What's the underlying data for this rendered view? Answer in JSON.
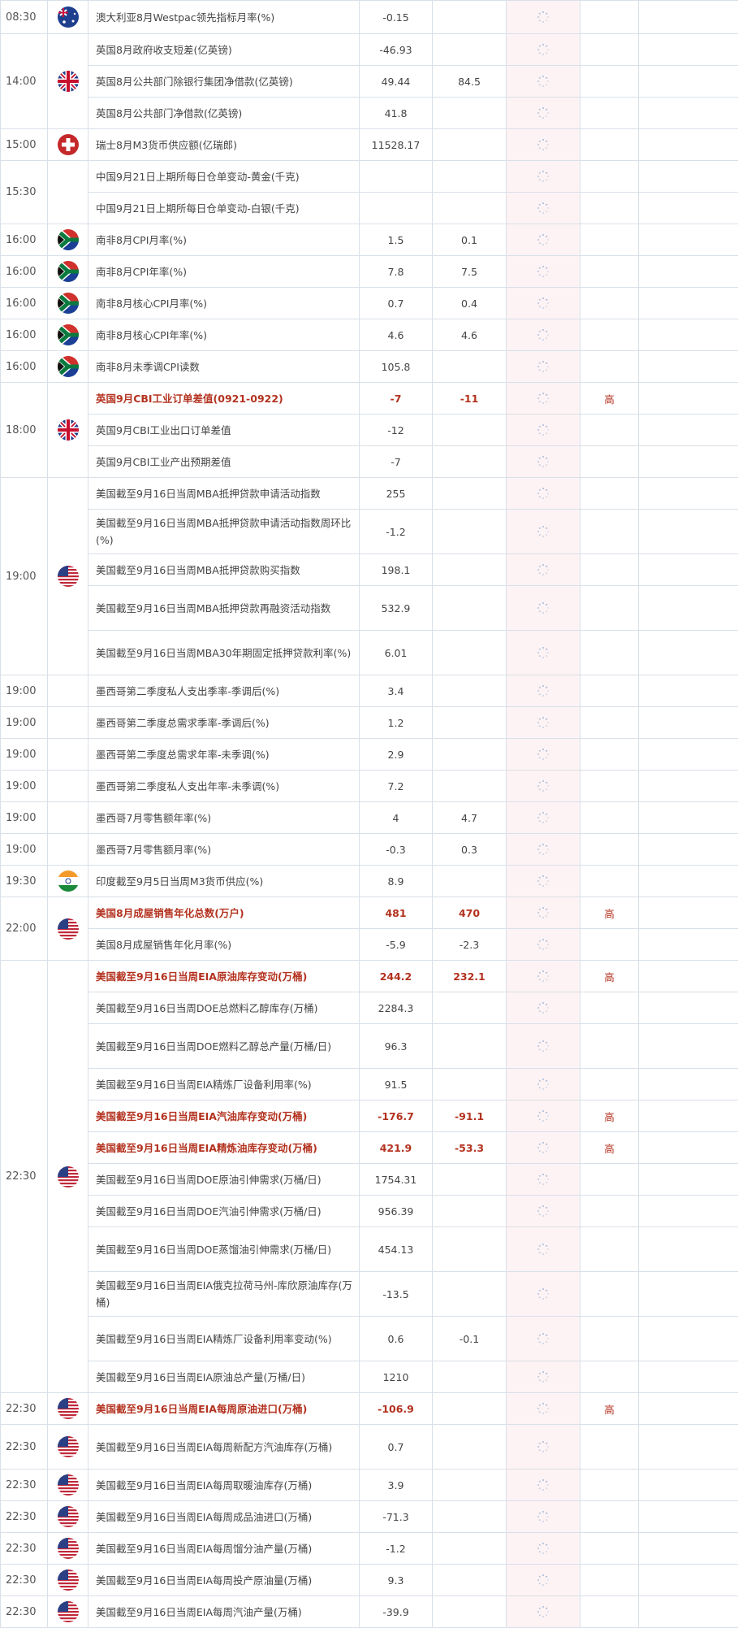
{
  "colors": {
    "highlight": "#b3321f",
    "actual_bg": "#fdf3f4",
    "border": "#d9e0e8"
  },
  "groups": [
    {
      "time": "08:30",
      "flag": "australia-flag",
      "events": [
        {
          "name": "澳大利亚8月Westpac领先指标月率(%)",
          "prev": "-0.15",
          "forecast": "",
          "importance": ""
        }
      ]
    },
    {
      "time": "14:00",
      "flag": "uk-flag",
      "events": [
        {
          "name": "英国8月政府收支短差(亿英镑)",
          "prev": "-46.93",
          "forecast": "",
          "importance": ""
        },
        {
          "name": "英国8月公共部门除银行集团净借款(亿英镑)",
          "prev": "49.44",
          "forecast": "84.5",
          "importance": ""
        },
        {
          "name": "英国8月公共部门净借款(亿英镑)",
          "prev": "41.8",
          "forecast": "",
          "importance": ""
        }
      ]
    },
    {
      "time": "15:00",
      "flag": "switzerland-flag",
      "events": [
        {
          "name": "瑞士8月M3货币供应额(亿瑞郎)",
          "prev": "11528.17",
          "forecast": "",
          "importance": ""
        }
      ]
    },
    {
      "time": "15:30",
      "flag": "",
      "events": [
        {
          "name": "中国9月21日上期所每日仓单变动-黄金(千克)",
          "prev": "",
          "forecast": "",
          "importance": ""
        },
        {
          "name": "中国9月21日上期所每日仓单变动-白银(千克)",
          "prev": "",
          "forecast": "",
          "importance": ""
        }
      ]
    },
    {
      "time": "16:00",
      "flag": "south-africa-flag",
      "events": [
        {
          "name": "南非8月CPI月率(%)",
          "prev": "1.5",
          "forecast": "0.1",
          "importance": ""
        }
      ]
    },
    {
      "time": "16:00",
      "flag": "south-africa-flag",
      "events": [
        {
          "name": "南非8月CPI年率(%)",
          "prev": "7.8",
          "forecast": "7.5",
          "importance": ""
        }
      ]
    },
    {
      "time": "16:00",
      "flag": "south-africa-flag",
      "events": [
        {
          "name": "南非8月核心CPI月率(%)",
          "prev": "0.7",
          "forecast": "0.4",
          "importance": ""
        }
      ]
    },
    {
      "time": "16:00",
      "flag": "south-africa-flag",
      "events": [
        {
          "name": "南非8月核心CPI年率(%)",
          "prev": "4.6",
          "forecast": "4.6",
          "importance": ""
        }
      ]
    },
    {
      "time": "16:00",
      "flag": "south-africa-flag",
      "events": [
        {
          "name": "南非8月未季调CPI读数",
          "prev": "105.8",
          "forecast": "",
          "importance": ""
        }
      ]
    },
    {
      "time": "18:00",
      "flag": "uk-flag",
      "events": [
        {
          "name": "英国9月CBI工业订单差值(0921-0922)",
          "prev": "-7",
          "forecast": "-11",
          "importance": "高",
          "highlight": true
        },
        {
          "name": "英国9月CBI工业出口订单差值",
          "prev": "-12",
          "forecast": "",
          "importance": ""
        },
        {
          "name": "英国9月CBI工业产出预期差值",
          "prev": "-7",
          "forecast": "",
          "importance": ""
        }
      ]
    },
    {
      "time": "19:00",
      "flag": "us-flag",
      "events": [
        {
          "name": "美国截至9月16日当周MBA抵押贷款申请活动指数",
          "prev": "255",
          "forecast": "",
          "importance": ""
        },
        {
          "name": "美国截至9月16日当周MBA抵押贷款申请活动指数周环比(%)",
          "prev": "-1.2",
          "forecast": "",
          "importance": "",
          "double": true
        },
        {
          "name": "美国截至9月16日当周MBA抵押贷款购买指数",
          "prev": "198.1",
          "forecast": "",
          "importance": ""
        },
        {
          "name": "美国截至9月16日当周MBA抵押贷款再融资活动指数",
          "prev": "532.9",
          "forecast": "",
          "importance": "",
          "double": true
        },
        {
          "name": "美国截至9月16日当周MBA30年期固定抵押贷款利率(%)",
          "prev": "6.01",
          "forecast": "",
          "importance": "",
          "double": true
        }
      ]
    },
    {
      "time": "19:00",
      "flag": "",
      "events": [
        {
          "name": "墨西哥第二季度私人支出季率-季调后(%)",
          "prev": "3.4",
          "forecast": "",
          "importance": ""
        }
      ]
    },
    {
      "time": "19:00",
      "flag": "",
      "events": [
        {
          "name": "墨西哥第二季度总需求季率-季调后(%)",
          "prev": "1.2",
          "forecast": "",
          "importance": ""
        }
      ]
    },
    {
      "time": "19:00",
      "flag": "",
      "events": [
        {
          "name": "墨西哥第二季度总需求年率-未季调(%)",
          "prev": "2.9",
          "forecast": "",
          "importance": ""
        }
      ]
    },
    {
      "time": "19:00",
      "flag": "",
      "events": [
        {
          "name": "墨西哥第二季度私人支出年率-未季调(%)",
          "prev": "7.2",
          "forecast": "",
          "importance": ""
        }
      ]
    },
    {
      "time": "19:00",
      "flag": "",
      "events": [
        {
          "name": "墨西哥7月零售额年率(%)",
          "prev": "4",
          "forecast": "4.7",
          "importance": ""
        }
      ]
    },
    {
      "time": "19:00",
      "flag": "",
      "events": [
        {
          "name": "墨西哥7月零售额月率(%)",
          "prev": "-0.3",
          "forecast": "0.3",
          "importance": ""
        }
      ]
    },
    {
      "time": "19:30",
      "flag": "india-flag",
      "events": [
        {
          "name": "印度截至9月5日当周M3货币供应(%)",
          "prev": "8.9",
          "forecast": "",
          "importance": ""
        }
      ]
    },
    {
      "time": "22:00",
      "flag": "us-flag",
      "events": [
        {
          "name": "美国8月成屋销售年化总数(万户)",
          "prev": "481",
          "forecast": "470",
          "importance": "高",
          "highlight": true
        },
        {
          "name": "美国8月成屋销售年化月率(%)",
          "prev": "-5.9",
          "forecast": "-2.3",
          "importance": ""
        }
      ]
    },
    {
      "time": "22:30",
      "flag": "us-flag",
      "events": [
        {
          "name": "美国截至9月16日当周EIA原油库存变动(万桶)",
          "prev": "244.2",
          "forecast": "232.1",
          "importance": "高",
          "highlight": true
        },
        {
          "name": "美国截至9月16日当周DOE总燃料乙醇库存(万桶)",
          "prev": "2284.3",
          "forecast": "",
          "importance": ""
        },
        {
          "name": "美国截至9月16日当周DOE燃料乙醇总产量(万桶/日)",
          "prev": "96.3",
          "forecast": "",
          "importance": "",
          "double": true
        },
        {
          "name": "美国截至9月16日当周EIA精炼厂设备利用率(%)",
          "prev": "91.5",
          "forecast": "",
          "importance": ""
        },
        {
          "name": "美国截至9月16日当周EIA汽油库存变动(万桶)",
          "prev": "-176.7",
          "forecast": "-91.1",
          "importance": "高",
          "highlight": true
        },
        {
          "name": "美国截至9月16日当周EIA精炼油库存变动(万桶)",
          "prev": "421.9",
          "forecast": "-53.3",
          "importance": "高",
          "highlight": true
        },
        {
          "name": "美国截至9月16日当周DOE原油引伸需求(万桶/日)",
          "prev": "1754.31",
          "forecast": "",
          "importance": ""
        },
        {
          "name": "美国截至9月16日当周DOE汽油引伸需求(万桶/日)",
          "prev": "956.39",
          "forecast": "",
          "importance": ""
        },
        {
          "name": "美国截至9月16日当周DOE蒸馏油引伸需求(万桶/日)",
          "prev": "454.13",
          "forecast": "",
          "importance": "",
          "double": true
        },
        {
          "name": "美国截至9月16日当周EIA俄克拉荷马州-库欣原油库存(万桶)",
          "prev": "-13.5",
          "forecast": "",
          "importance": "",
          "double": true
        },
        {
          "name": "美国截至9月16日当周EIA精炼厂设备利用率变动(%)",
          "prev": "0.6",
          "forecast": "-0.1",
          "importance": "",
          "double": true
        },
        {
          "name": "美国截至9月16日当周EIA原油总产量(万桶/日)",
          "prev": "1210",
          "forecast": "",
          "importance": ""
        }
      ]
    },
    {
      "time": "22:30",
      "flag": "us-flag",
      "events": [
        {
          "name": "美国截至9月16日当周EIA每周原油进口(万桶)",
          "prev": "-106.9",
          "forecast": "",
          "importance": "高",
          "highlight": true
        }
      ]
    },
    {
      "time": "22:30",
      "flag": "us-flag",
      "events": [
        {
          "name": "美国截至9月16日当周EIA每周新配方汽油库存(万桶)",
          "prev": "0.7",
          "forecast": "",
          "importance": "",
          "double": true
        }
      ]
    },
    {
      "time": "22:30",
      "flag": "us-flag",
      "events": [
        {
          "name": "美国截至9月16日当周EIA每周取暖油库存(万桶)",
          "prev": "3.9",
          "forecast": "",
          "importance": ""
        }
      ]
    },
    {
      "time": "22:30",
      "flag": "us-flag",
      "events": [
        {
          "name": "美国截至9月16日当周EIA每周成品油进口(万桶)",
          "prev": "-71.3",
          "forecast": "",
          "importance": ""
        }
      ]
    },
    {
      "time": "22:30",
      "flag": "us-flag",
      "events": [
        {
          "name": "美国截至9月16日当周EIA每周馏分油产量(万桶)",
          "prev": "-1.2",
          "forecast": "",
          "importance": ""
        }
      ]
    },
    {
      "time": "22:30",
      "flag": "us-flag",
      "events": [
        {
          "name": "美国截至9月16日当周EIA每周投产原油量(万桶)",
          "prev": "9.3",
          "forecast": "",
          "importance": ""
        }
      ]
    },
    {
      "time": "22:30",
      "flag": "us-flag",
      "events": [
        {
          "name": "美国截至9月16日当周EIA每周汽油产量(万桶)",
          "prev": "-39.9",
          "forecast": "",
          "importance": ""
        }
      ]
    }
  ]
}
